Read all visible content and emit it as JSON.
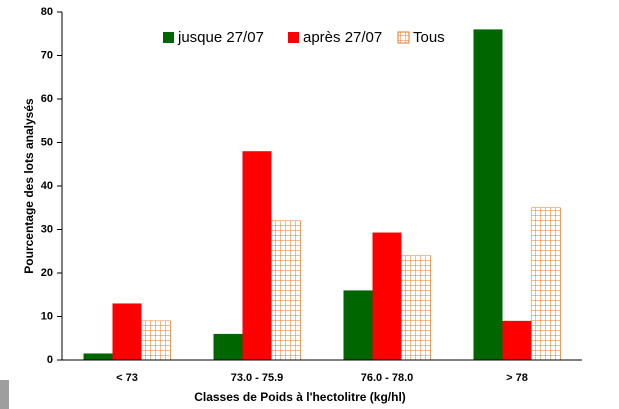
{
  "chart_data": {
    "type": "bar",
    "x_label": "Classes de Poids à l'hectolitre (kg/hl)",
    "y_label": "Pourcentage des lots analysés",
    "categories": [
      "< 73",
      "73.0 - 75.9",
      "76.0 - 78.0",
      "> 78"
    ],
    "series": [
      {
        "name": "jusque 27/07",
        "color": "#006600",
        "values": [
          1.5,
          6,
          16,
          76
        ]
      },
      {
        "name": "après 27/07",
        "color": "#ff0000",
        "values": [
          13,
          48,
          29.3,
          9
        ]
      },
      {
        "name": "Tous",
        "color": "#e87722",
        "pattern": "grid",
        "values": [
          9,
          32,
          24,
          35
        ]
      }
    ],
    "ylim": [
      0,
      80
    ],
    "yticks": [
      0,
      10,
      20,
      30,
      40,
      50,
      60,
      70,
      80
    ],
    "legend": "top"
  }
}
